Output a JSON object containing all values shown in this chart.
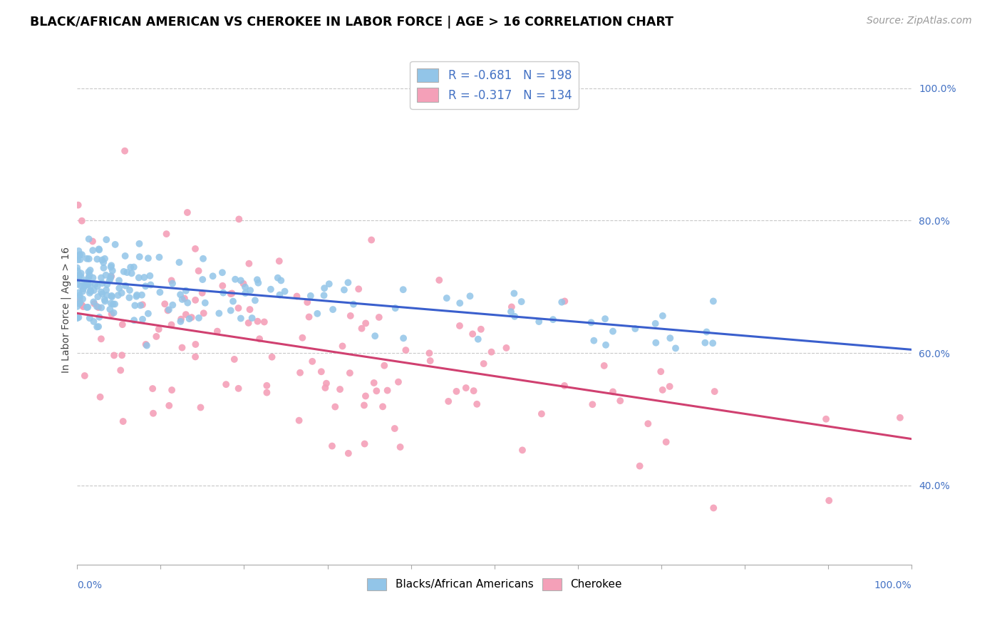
{
  "title": "BLACK/AFRICAN AMERICAN VS CHEROKEE IN LABOR FORCE | AGE > 16 CORRELATION CHART",
  "source": "Source: ZipAtlas.com",
  "ylabel": "In Labor Force | Age > 16",
  "legend_blue_label": "R = -0.681   N = 198",
  "legend_pink_label": "R = -0.317   N = 134",
  "legend_bottom_blue": "Blacks/African Americans",
  "legend_bottom_pink": "Cherokee",
  "blue_color": "#92c5e8",
  "pink_color": "#f4a0b8",
  "blue_line_color": "#3a5fcd",
  "pink_line_color": "#d04070",
  "legend_text_color": "#4472c4",
  "title_color": "#000000",
  "background_color": "#ffffff",
  "grid_color": "#c8c8c8",
  "xlim": [
    0.0,
    1.0
  ],
  "ylim": [
    0.28,
    1.05
  ],
  "blue_intercept": 0.71,
  "blue_slope": -0.105,
  "pink_intercept": 0.66,
  "pink_slope": -0.19,
  "yticks": [
    0.4,
    0.6,
    0.8,
    1.0
  ],
  "ytick_labels": [
    "40.0%",
    "60.0%",
    "80.0%",
    "100.0%"
  ]
}
